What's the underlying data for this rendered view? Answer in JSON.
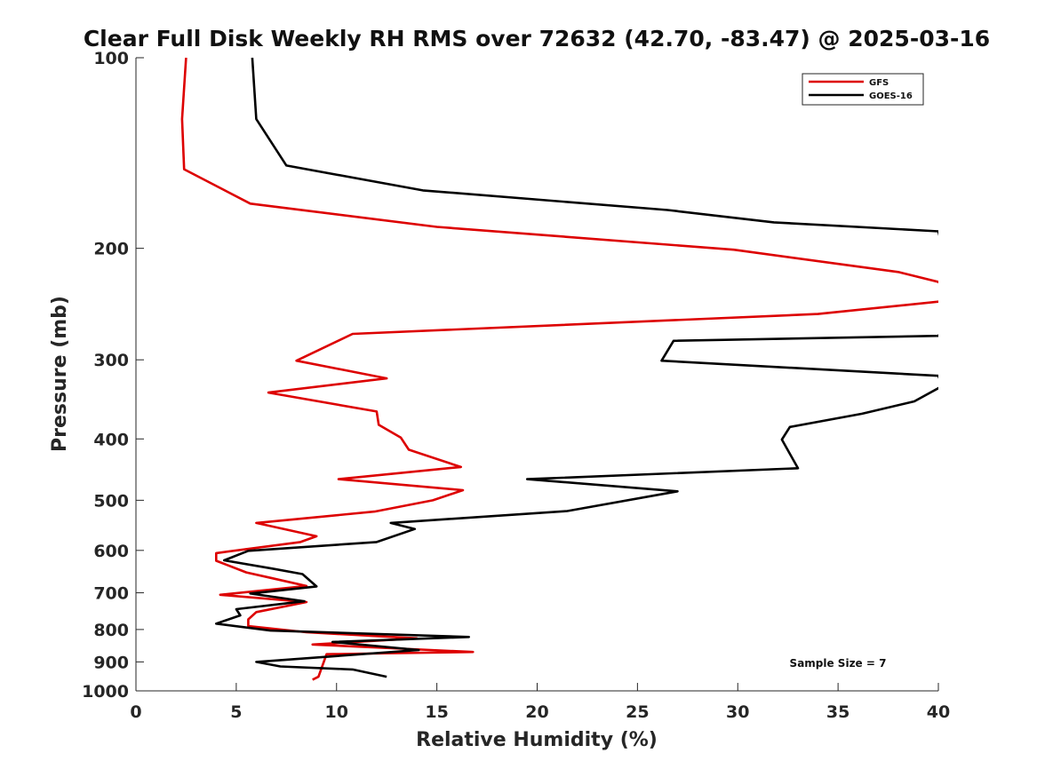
{
  "chart_data": {
    "type": "line",
    "title": "Clear Full Disk Weekly RH RMS over 72632 (42.70, -83.47) @ 2025-03-16",
    "xlabel": "Relative Humidity (%)",
    "ylabel": "Pressure (mb)",
    "xlim": [
      0,
      40
    ],
    "ylim": [
      100,
      1000
    ],
    "y_scale": "log",
    "y_reversed": true,
    "x_ticks": [
      0,
      5,
      10,
      15,
      20,
      25,
      30,
      35,
      40
    ],
    "y_ticks": [
      100,
      200,
      300,
      400,
      500,
      600,
      700,
      800,
      900,
      1000
    ],
    "grid": false,
    "legend_position": "top-right",
    "annotation": "Sample Size = 7",
    "series": [
      {
        "name": "GFS",
        "color": "#dd0000",
        "points": [
          [
            2.5,
            100
          ],
          [
            2.3,
            125
          ],
          [
            2.4,
            150
          ],
          [
            5.7,
            170
          ],
          [
            15.0,
            185
          ],
          [
            29.8,
            201
          ],
          [
            38.0,
            218
          ],
          [
            40.0,
            226
          ],
          [
            41.0,
            241
          ],
          [
            34.0,
            254
          ],
          [
            10.8,
            273
          ],
          [
            8.0,
            301
          ],
          [
            12.5,
            321
          ],
          [
            6.6,
            338
          ],
          [
            12.0,
            362
          ],
          [
            12.1,
            380
          ],
          [
            13.2,
            398
          ],
          [
            13.6,
            416
          ],
          [
            16.2,
            443
          ],
          [
            10.1,
            463
          ],
          [
            16.3,
            482
          ],
          [
            14.8,
            500
          ],
          [
            11.9,
            521
          ],
          [
            6.0,
            543
          ],
          [
            9.0,
            570
          ],
          [
            8.2,
            582
          ],
          [
            4.0,
            606
          ],
          [
            4.0,
            623
          ],
          [
            5.5,
            650
          ],
          [
            6.8,
            664
          ],
          [
            8.5,
            683
          ],
          [
            4.2,
            705
          ],
          [
            8.5,
            724
          ],
          [
            6.0,
            751
          ],
          [
            5.6,
            771
          ],
          [
            5.6,
            790
          ],
          [
            8.5,
            808
          ],
          [
            14.0,
            826
          ],
          [
            8.8,
            845
          ],
          [
            16.8,
            868
          ],
          [
            9.5,
            875
          ],
          [
            9.1,
            950
          ],
          [
            8.8,
            960
          ]
        ]
      },
      {
        "name": "GOES-16",
        "color": "#000000",
        "points": [
          [
            5.8,
            100
          ],
          [
            6.0,
            125
          ],
          [
            7.5,
            148
          ],
          [
            14.3,
            162
          ],
          [
            26.5,
            174
          ],
          [
            31.8,
            182
          ],
          [
            40.0,
            188
          ],
          [
            41.0,
            250
          ],
          [
            40.0,
            275
          ],
          [
            26.8,
            280
          ],
          [
            26.2,
            301
          ],
          [
            40.0,
            318
          ],
          [
            40.2,
            330
          ],
          [
            38.8,
            349
          ],
          [
            36.2,
            365
          ],
          [
            32.6,
            383
          ],
          [
            32.2,
            401
          ],
          [
            33.0,
            445
          ],
          [
            19.5,
            463
          ],
          [
            27.0,
            484
          ],
          [
            21.5,
            520
          ],
          [
            12.7,
            543
          ],
          [
            13.9,
            555
          ],
          [
            12.0,
            582
          ],
          [
            5.6,
            601
          ],
          [
            4.4,
            622
          ],
          [
            6.8,
            641
          ],
          [
            8.3,
            654
          ],
          [
            9.0,
            684
          ],
          [
            5.7,
            702
          ],
          [
            8.4,
            722
          ],
          [
            5.0,
            743
          ],
          [
            5.2,
            760
          ],
          [
            4.0,
            783
          ],
          [
            6.7,
            803
          ],
          [
            16.6,
            822
          ],
          [
            9.8,
            837
          ],
          [
            14.1,
            862
          ],
          [
            6.0,
            900
          ],
          [
            7.2,
            915
          ],
          [
            10.8,
            925
          ],
          [
            12.5,
            950
          ]
        ]
      }
    ]
  }
}
